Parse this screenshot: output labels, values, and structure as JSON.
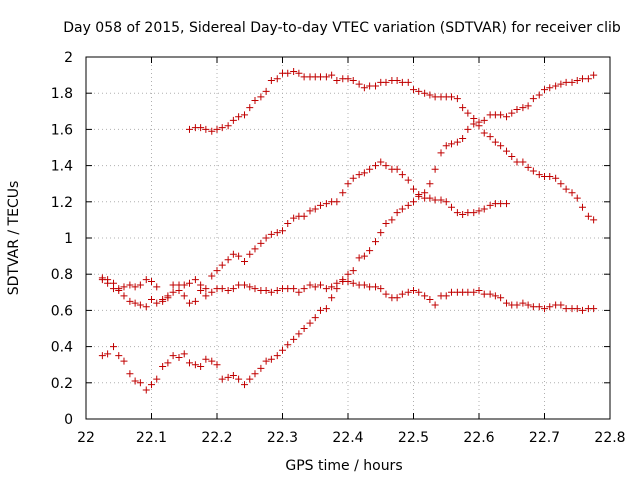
{
  "chart_data": {
    "type": "scatter",
    "title": "Day 058 of 2015, Sidereal Day-to-day VTEC variation (SDTVAR) for receiver clib",
    "xlabel": "GPS time / hours",
    "ylabel": "SDTVAR / TECUs",
    "xlim": [
      22,
      22.8
    ],
    "ylim": [
      0,
      2
    ],
    "x_ticks": [
      "22",
      "22.1",
      "22.2",
      "22.3",
      "22.4",
      "22.5",
      "22.6",
      "22.7",
      "22.8"
    ],
    "y_ticks": [
      "0",
      "0.2",
      "0.4",
      "0.6",
      "0.8",
      "1",
      "1.2",
      "1.4",
      "1.6",
      "1.8",
      "2"
    ],
    "grid": true,
    "marker": "+",
    "color": "#c00000",
    "series": [
      {
        "x": [
          22.025,
          22.033,
          22.042,
          22.05,
          22.058,
          22.067,
          22.075,
          22.083,
          22.092,
          22.1,
          22.108,
          22.117,
          22.125,
          22.133,
          22.142,
          22.15,
          22.158,
          22.167,
          22.175,
          22.183,
          22.192,
          22.2,
          22.208,
          22.217,
          22.225,
          22.233,
          22.242,
          22.25,
          22.258,
          22.267,
          22.275,
          22.283,
          22.292,
          22.3,
          22.308,
          22.317,
          22.325,
          22.333,
          22.342,
          22.35,
          22.358,
          22.367,
          22.375,
          22.383,
          22.392,
          22.4,
          22.408,
          22.417,
          22.425,
          22.433,
          22.442,
          22.45,
          22.458,
          22.467,
          22.475,
          22.483,
          22.492,
          22.5,
          22.508,
          22.517,
          22.525,
          22.533,
          22.542,
          22.55,
          22.558,
          22.567,
          22.575,
          22.583,
          22.592,
          22.6,
          22.608,
          22.617,
          22.625,
          22.633,
          22.642,
          22.65,
          22.658,
          22.667,
          22.675,
          22.683,
          22.692,
          22.7,
          22.708,
          22.717,
          22.725,
          22.733,
          22.742,
          22.75,
          22.758,
          22.767,
          22.775
        ],
        "y": [
          0.78,
          0.77,
          0.75,
          0.72,
          0.73,
          0.74,
          0.73,
          0.74,
          0.77,
          0.76,
          0.73,
          0.66,
          0.68,
          0.74,
          0.74,
          0.74,
          0.75,
          0.77,
          0.74,
          0.68,
          0.7,
          0.72,
          0.72,
          0.71,
          0.72,
          0.74,
          0.74,
          0.73,
          0.72,
          0.71,
          0.71,
          0.7,
          0.71,
          0.72,
          0.72,
          0.72,
          0.7,
          0.72,
          0.74,
          0.73,
          0.74,
          0.72,
          0.73,
          0.75,
          0.77,
          0.76,
          0.75,
          0.74,
          0.74,
          0.73,
          0.73,
          0.72,
          0.69,
          0.67,
          0.67,
          0.69,
          0.7,
          0.71,
          0.7,
          0.68,
          0.66,
          0.63,
          0.68,
          0.68,
          0.7,
          0.7,
          0.7,
          0.7,
          0.7,
          0.71,
          0.69,
          0.69,
          0.68,
          0.67,
          0.64,
          0.63,
          0.63,
          0.64,
          0.63,
          0.62,
          0.62,
          0.61,
          0.62,
          0.63,
          0.63,
          0.61,
          0.61,
          0.61,
          0.6,
          0.61,
          0.61
        ]
      },
      {
        "x": [
          22.025,
          22.033,
          22.042,
          22.05,
          22.058,
          22.067,
          22.075,
          22.083,
          22.092,
          22.1,
          22.108,
          22.117,
          22.125,
          22.133,
          22.142,
          22.15,
          22.158,
          22.167,
          22.175,
          22.183,
          22.192,
          22.2,
          22.208,
          22.217,
          22.225,
          22.233,
          22.242,
          22.25,
          22.258,
          22.267,
          22.275,
          22.283,
          22.292,
          22.3,
          22.308,
          22.317,
          22.325,
          22.333,
          22.342,
          22.35,
          22.358,
          22.367,
          22.375,
          22.383,
          22.392,
          22.4,
          22.408,
          22.417,
          22.425,
          22.433,
          22.442,
          22.45,
          22.458,
          22.467,
          22.475,
          22.483,
          22.492,
          22.5,
          22.508,
          22.517,
          22.525,
          22.533,
          22.542,
          22.55,
          22.558,
          22.567,
          22.575,
          22.583,
          22.592,
          22.6,
          22.608,
          22.617,
          22.625,
          22.633,
          22.642
        ],
        "y": [
          0.77,
          0.75,
          0.72,
          0.71,
          0.68,
          0.65,
          0.64,
          0.63,
          0.62,
          0.66,
          0.64,
          0.65,
          0.67,
          0.7,
          0.71,
          0.68,
          0.64,
          0.65,
          0.71,
          0.72,
          0.79,
          0.82,
          0.85,
          0.88,
          0.91,
          0.9,
          0.87,
          0.91,
          0.94,
          0.97,
          1.0,
          1.02,
          1.03,
          1.04,
          1.08,
          1.11,
          1.12,
          1.12,
          1.15,
          1.16,
          1.18,
          1.19,
          1.2,
          1.2,
          1.25,
          1.3,
          1.33,
          1.35,
          1.36,
          1.38,
          1.4,
          1.42,
          1.4,
          1.38,
          1.38,
          1.35,
          1.32,
          1.27,
          1.24,
          1.22,
          1.22,
          1.21,
          1.21,
          1.2,
          1.17,
          1.14,
          1.13,
          1.14,
          1.14,
          1.15,
          1.16,
          1.18,
          1.19,
          1.19,
          1.19
        ]
      },
      {
        "x": [
          22.025,
          22.033,
          22.042,
          22.05,
          22.058,
          22.067,
          22.075,
          22.083,
          22.092,
          22.1,
          22.108,
          22.117,
          22.125,
          22.133,
          22.142,
          22.15,
          22.158,
          22.167,
          22.175,
          22.183,
          22.192,
          22.2,
          22.208,
          22.217,
          22.225,
          22.233,
          22.242,
          22.25,
          22.258,
          22.267,
          22.275,
          22.283,
          22.292,
          22.3,
          22.308,
          22.317,
          22.325,
          22.333,
          22.342,
          22.35,
          22.358,
          22.367,
          22.375,
          22.383,
          22.392,
          22.4,
          22.408,
          22.417,
          22.425,
          22.433,
          22.442,
          22.45,
          22.458,
          22.467,
          22.475,
          22.483,
          22.492,
          22.5,
          22.508,
          22.517,
          22.525,
          22.533,
          22.542,
          22.55,
          22.558,
          22.567,
          22.575,
          22.583,
          22.592,
          22.6,
          22.608,
          22.617,
          22.625,
          22.633,
          22.642,
          22.65,
          22.658,
          22.667,
          22.675,
          22.683,
          22.692,
          22.7,
          22.708,
          22.717,
          22.725,
          22.733,
          22.742,
          22.75,
          22.758,
          22.767,
          22.775
        ],
        "y": [
          0.35,
          0.36,
          0.4,
          0.35,
          0.32,
          0.25,
          0.21,
          0.2,
          0.16,
          0.19,
          0.22,
          0.29,
          0.31,
          0.35,
          0.34,
          0.36,
          0.31,
          0.3,
          0.29,
          0.33,
          0.32,
          0.3,
          0.22,
          0.23,
          0.24,
          0.22,
          0.19,
          0.22,
          0.25,
          0.28,
          0.32,
          0.33,
          0.35,
          0.38,
          0.41,
          0.44,
          0.47,
          0.5,
          0.53,
          0.56,
          0.6,
          0.61,
          0.67,
          0.72,
          0.76,
          0.8,
          0.82,
          0.89,
          0.9,
          0.93,
          0.98,
          1.03,
          1.08,
          1.1,
          1.14,
          1.16,
          1.18,
          1.2,
          1.23,
          1.25,
          1.3,
          1.38,
          1.47,
          1.51,
          1.52,
          1.53,
          1.55,
          1.6,
          1.63,
          1.62,
          1.58,
          1.56,
          1.53,
          1.51,
          1.48,
          1.45,
          1.42,
          1.42,
          1.39,
          1.37,
          1.35,
          1.34,
          1.34,
          1.33,
          1.3,
          1.27,
          1.25,
          1.22,
          1.17,
          1.12,
          1.1
        ]
      },
      {
        "x": [
          22.158,
          22.167,
          22.175,
          22.183,
          22.192,
          22.2,
          22.208,
          22.217,
          22.225,
          22.233,
          22.242,
          22.25,
          22.258,
          22.267,
          22.275,
          22.283,
          22.292,
          22.3,
          22.308,
          22.317,
          22.325,
          22.333,
          22.342,
          22.35,
          22.358,
          22.367,
          22.375,
          22.383,
          22.392,
          22.4,
          22.408,
          22.417,
          22.425,
          22.433,
          22.442,
          22.45,
          22.458,
          22.467,
          22.475,
          22.483,
          22.492,
          22.5,
          22.508,
          22.517,
          22.525,
          22.533,
          22.542,
          22.55,
          22.558,
          22.567,
          22.575,
          22.583,
          22.592,
          22.6,
          22.608,
          22.617,
          22.625,
          22.633,
          22.642,
          22.65,
          22.658,
          22.667,
          22.675,
          22.683,
          22.692,
          22.7,
          22.708,
          22.717,
          22.725,
          22.733,
          22.742,
          22.75,
          22.758,
          22.767,
          22.775
        ],
        "y": [
          1.6,
          1.61,
          1.61,
          1.6,
          1.59,
          1.6,
          1.61,
          1.62,
          1.65,
          1.67,
          1.68,
          1.72,
          1.76,
          1.78,
          1.81,
          1.87,
          1.88,
          1.91,
          1.91,
          1.92,
          1.91,
          1.89,
          1.89,
          1.89,
          1.89,
          1.89,
          1.9,
          1.87,
          1.88,
          1.88,
          1.87,
          1.85,
          1.83,
          1.84,
          1.84,
          1.86,
          1.86,
          1.87,
          1.87,
          1.86,
          1.86,
          1.82,
          1.81,
          1.8,
          1.79,
          1.78,
          1.78,
          1.78,
          1.78,
          1.77,
          1.72,
          1.69,
          1.66,
          1.64,
          1.65,
          1.68,
          1.68,
          1.68,
          1.67,
          1.69,
          1.71,
          1.72,
          1.73,
          1.77,
          1.79,
          1.82,
          1.83,
          1.84,
          1.85,
          1.86,
          1.86,
          1.87,
          1.88,
          1.88,
          1.9
        ]
      }
    ]
  }
}
